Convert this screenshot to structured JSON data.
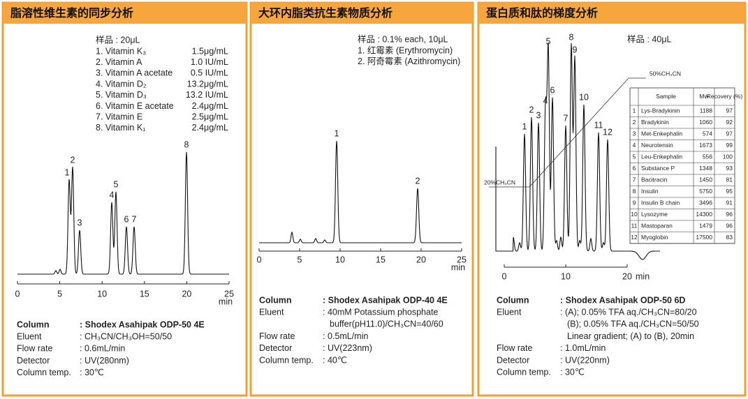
{
  "panels": [
    {
      "title": "脂溶性维生素的同步分析",
      "sample": {
        "label": "样品 : 20μL",
        "items": [
          [
            "1. Vitamin K₃",
            "1.5μg/mL"
          ],
          [
            "2. Vitamin A",
            "1.0 IU/mL"
          ],
          [
            "3. Vitamin A acetate",
            "0.5 IU/mL"
          ],
          [
            "4. Vitamin D₂",
            "13.2μg/mL"
          ],
          [
            "5. Vitamin D₃",
            "13.2 IU/mL"
          ],
          [
            "6. Vitamin E acetate",
            "2.4μg/mL"
          ],
          [
            "7. Vitamin E",
            "2.5μg/mL"
          ],
          [
            "8. Vitamin K₁",
            "2.4μg/mL"
          ]
        ]
      },
      "axis": {
        "xlim": [
          0,
          25
        ],
        "xticks": [
          0,
          5,
          10,
          15,
          20,
          25
        ],
        "unit": "min"
      },
      "peaks": [
        "1",
        "2",
        "3",
        "4",
        "5",
        "6",
        "7",
        "8"
      ],
      "conditions": [
        [
          "Column",
          [
            ": Shodex Asahipak ODP-50 4E"
          ]
        ],
        [
          "Eluent",
          [
            ": CH₃CN/CH₃OH=50/50"
          ]
        ],
        [
          "Flow rate",
          [
            ": 0.6mL/min"
          ]
        ],
        [
          "Detector",
          [
            ": UV(280nm)"
          ]
        ],
        [
          "Column temp.",
          [
            ": 30℃"
          ]
        ]
      ]
    },
    {
      "title": "大环内脂类抗生素物质分析",
      "sample": {
        "label": "样品 : 0.1% each, 10μL",
        "items": [
          [
            "1. 红霉素 (Erythromycin)"
          ],
          [
            "2. 阿奇霉素 (Azithromycin)"
          ]
        ]
      },
      "axis": {
        "xlim": [
          0,
          25
        ],
        "xticks": [
          0,
          5,
          10,
          15,
          20,
          25
        ],
        "unit": "min"
      },
      "peaks": [
        "1",
        "2"
      ],
      "conditions": [
        [
          "Column",
          [
            ": Shodex Asahipak ODP-40 4E"
          ]
        ],
        [
          "Eluent",
          [
            ": 40mM Potassium phosphate",
            "buffer(pH11.0)/CH₃CN=40/60"
          ]
        ],
        [
          "Flow rate",
          [
            ": 0.5mL/min"
          ]
        ],
        [
          "Detector",
          [
            ": UV(223nm)"
          ]
        ],
        [
          "Column temp.",
          [
            ": 40℃"
          ]
        ]
      ]
    },
    {
      "title": "蛋白质和肽的梯度分析",
      "sample": {
        "label": "样品 : 40μL",
        "items": []
      },
      "axis": {
        "xlim": [
          0,
          20
        ],
        "xticks": [
          0,
          10,
          20
        ],
        "unit": "min"
      },
      "peaks": [
        "1",
        "2",
        "3",
        "4",
        "5",
        "6",
        "7",
        "8",
        "9",
        "10",
        "11",
        "12"
      ],
      "annotations": [
        "50%CH₃CN",
        "20%CH₃CN"
      ],
      "table": {
        "header": [
          "Sample",
          "Mw",
          "Recovery (%)"
        ],
        "rows": [
          [
            "1",
            "Lys-Bradykinin",
            "1188",
            "97"
          ],
          [
            "2",
            "Bradykinin",
            "1060",
            "92"
          ],
          [
            "3",
            "Met-Enkephalin",
            "574",
            "97"
          ],
          [
            "4",
            "Neurotensin",
            "1673",
            "99"
          ],
          [
            "5",
            "Leu-Enkephalin",
            "556",
            "100"
          ],
          [
            "6",
            "Substance P",
            "1348",
            "93"
          ],
          [
            "7",
            "Bacitracin",
            "1450",
            "81"
          ],
          [
            "8",
            "Insulin",
            "5750",
            "95"
          ],
          [
            "9",
            "Insulin B chain",
            "3496",
            "91"
          ],
          [
            "10",
            "Lysozyme",
            "14300",
            "96"
          ],
          [
            "11",
            "Mastoparan",
            "1479",
            "96"
          ],
          [
            "12",
            "Myoglobin",
            "17500",
            "83"
          ]
        ]
      },
      "conditions": [
        [
          "Column",
          [
            ": Shodex Asahipak ODP-50 6D"
          ]
        ],
        [
          "Eluent",
          [
            ": (A); 0.05% TFA aq./CH₃CN=80/20",
            "(B); 0.05% TFA aq./CH₃CN=50/50",
            "Linear gradient; (A) to (B), 20min"
          ]
        ],
        [
          "Flow rate",
          [
            ": 1.0mL/min"
          ]
        ],
        [
          "Detector",
          [
            ": UV(220nm)"
          ]
        ],
        [
          "Column temp.",
          [
            ": 30℃"
          ]
        ]
      ]
    }
  ]
}
